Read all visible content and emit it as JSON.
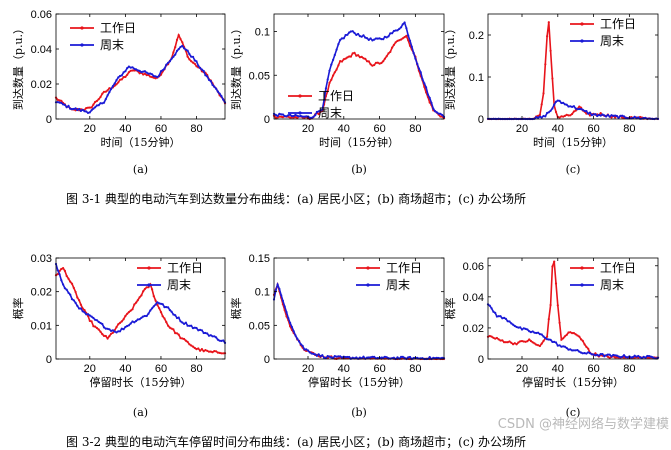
{
  "colors": {
    "weekday": "#e8141b",
    "weekend": "#1a1ad6",
    "axis": "#000000"
  },
  "legend": {
    "weekday": "工作日",
    "weekend": "周末"
  },
  "figures": {
    "fig1": {
      "caption": "图 3-1  典型的电动汽车到达数量分布曲线：(a) 居民小区；(b) 商场超市；(c) 办公场所",
      "xlabel": "时间（15分钟）",
      "ylabel": "到达数量（p.u.）"
    },
    "fig2": {
      "caption": "图 3-2  典型的电动汽车停留时间分布曲线：(a) 居民小区；(b) 商场超市；(c) 办公场所",
      "xlabel": "停留时长（15分钟）",
      "ylabel": "概率"
    }
  },
  "panel_labels": [
    "(a)",
    "(b)",
    "(c)"
  ],
  "watermark": "CSDN @神经网络与数学建模",
  "chart_data": [
    {
      "id": "p11",
      "type": "line",
      "panel": "(a)",
      "xlim": [
        1,
        96
      ],
      "ylim": [
        0,
        0.06
      ],
      "xticks": [
        20,
        40,
        60,
        80
      ],
      "yticks": [
        0,
        0.02,
        0.04,
        0.06
      ],
      "ytick_labels": [
        "0",
        "0.02",
        "0.04",
        "0.06"
      ],
      "xlabel": "时间（15分钟）",
      "ylabel": "到达数量（p.u.）",
      "legend_pos": "top-left",
      "series": [
        {
          "name": "工作日",
          "kp": [
            [
              1,
              0.012
            ],
            [
              10,
              0.005
            ],
            [
              20,
              0.006
            ],
            [
              28,
              0.015
            ],
            [
              35,
              0.02
            ],
            [
              44,
              0.028
            ],
            [
              50,
              0.026
            ],
            [
              58,
              0.023
            ],
            [
              66,
              0.035
            ],
            [
              70,
              0.048
            ],
            [
              76,
              0.034
            ],
            [
              86,
              0.025
            ],
            [
              96,
              0.009
            ]
          ]
        },
        {
          "name": "周末",
          "kp": [
            [
              1,
              0.01
            ],
            [
              10,
              0.006
            ],
            [
              20,
              0.004
            ],
            [
              28,
              0.01
            ],
            [
              35,
              0.022
            ],
            [
              42,
              0.03
            ],
            [
              50,
              0.027
            ],
            [
              58,
              0.024
            ],
            [
              66,
              0.035
            ],
            [
              72,
              0.042
            ],
            [
              78,
              0.035
            ],
            [
              86,
              0.024
            ],
            [
              96,
              0.01
            ]
          ]
        }
      ]
    },
    {
      "id": "p12",
      "type": "line",
      "panel": "(b)",
      "xlim": [
        1,
        96
      ],
      "ylim": [
        0,
        0.12
      ],
      "xticks": [
        20,
        40,
        60,
        80
      ],
      "yticks": [
        0,
        0.05,
        0.1
      ],
      "ytick_labels": [
        "0",
        "0.05",
        "0.1"
      ],
      "xlabel": "时间（15分钟）",
      "ylabel": "到达数量（p.u.）",
      "legend_pos": "center-left",
      "series": [
        {
          "name": "工作日",
          "kp": [
            [
              1,
              0.003
            ],
            [
              22,
              0.001
            ],
            [
              28,
              0.01
            ],
            [
              32,
              0.04
            ],
            [
              38,
              0.065
            ],
            [
              46,
              0.075
            ],
            [
              50,
              0.07
            ],
            [
              56,
              0.062
            ],
            [
              62,
              0.065
            ],
            [
              70,
              0.09
            ],
            [
              75,
              0.095
            ],
            [
              80,
              0.07
            ],
            [
              86,
              0.03
            ],
            [
              90,
              0.01
            ],
            [
              96,
              0.001
            ]
          ]
        },
        {
          "name": "周末",
          "kp": [
            [
              1,
              0.005
            ],
            [
              22,
              0.002
            ],
            [
              28,
              0.012
            ],
            [
              32,
              0.055
            ],
            [
              38,
              0.09
            ],
            [
              44,
              0.1
            ],
            [
              50,
              0.095
            ],
            [
              56,
              0.09
            ],
            [
              62,
              0.092
            ],
            [
              70,
              0.102
            ],
            [
              74,
              0.11
            ],
            [
              80,
              0.07
            ],
            [
              86,
              0.035
            ],
            [
              90,
              0.012
            ],
            [
              96,
              0.002
            ]
          ]
        }
      ]
    },
    {
      "id": "p13",
      "type": "line",
      "panel": "(c)",
      "xlim": [
        1,
        96
      ],
      "ylim": [
        0,
        0.25
      ],
      "xticks": [
        20,
        40,
        60,
        80
      ],
      "yticks": [
        0,
        0.1,
        0.2
      ],
      "ytick_labels": [
        "0",
        "0.1",
        "0.2"
      ],
      "xlabel": "时间（15分钟）",
      "ylabel": "到达数量（p.u.）",
      "legend_pos": "top-right",
      "series": [
        {
          "name": "工作日",
          "kp": [
            [
              1,
              0
            ],
            [
              26,
              0
            ],
            [
              30,
              0.01
            ],
            [
              32,
              0.06
            ],
            [
              34,
              0.2
            ],
            [
              35,
              0.23
            ],
            [
              36,
              0.16
            ],
            [
              38,
              0.03
            ],
            [
              40,
              0.005
            ],
            [
              48,
              0.01
            ],
            [
              52,
              0.03
            ],
            [
              56,
              0.01
            ],
            [
              64,
              0.012
            ],
            [
              72,
              0.005
            ],
            [
              82,
              0.003
            ],
            [
              96,
              0
            ]
          ]
        },
        {
          "name": "周末",
          "kp": [
            [
              1,
              0
            ],
            [
              26,
              0
            ],
            [
              32,
              0.005
            ],
            [
              36,
              0.02
            ],
            [
              40,
              0.045
            ],
            [
              44,
              0.035
            ],
            [
              48,
              0.03
            ],
            [
              54,
              0.02
            ],
            [
              60,
              0.01
            ],
            [
              66,
              0.008
            ],
            [
              72,
              0.006
            ],
            [
              82,
              0.003
            ],
            [
              96,
              0
            ]
          ]
        }
      ]
    },
    {
      "id": "p21",
      "type": "line",
      "panel": "(a)",
      "xlim": [
        1,
        96
      ],
      "ylim": [
        0,
        0.03
      ],
      "xticks": [
        20,
        40,
        60,
        80
      ],
      "yticks": [
        0,
        0.01,
        0.02,
        0.03
      ],
      "ytick_labels": [
        "0",
        "0.01",
        "0.02",
        "0.03"
      ],
      "xlabel": "停留时长（15分钟）",
      "ylabel": "概率",
      "legend_pos": "top-right",
      "series": [
        {
          "name": "工作日",
          "kp": [
            [
              1,
              0.025
            ],
            [
              5,
              0.027
            ],
            [
              10,
              0.022
            ],
            [
              16,
              0.015
            ],
            [
              22,
              0.01
            ],
            [
              30,
              0.006
            ],
            [
              36,
              0.01
            ],
            [
              44,
              0.015
            ],
            [
              50,
              0.02
            ],
            [
              54,
              0.022
            ],
            [
              58,
              0.016
            ],
            [
              64,
              0.01
            ],
            [
              72,
              0.006
            ],
            [
              80,
              0.003
            ],
            [
              88,
              0.002
            ],
            [
              96,
              0.002
            ]
          ]
        },
        {
          "name": "周末",
          "kp": [
            [
              1,
              0.028
            ],
            [
              5,
              0.022
            ],
            [
              10,
              0.018
            ],
            [
              16,
              0.014
            ],
            [
              22,
              0.012
            ],
            [
              30,
              0.009
            ],
            [
              36,
              0.008
            ],
            [
              44,
              0.011
            ],
            [
              52,
              0.013
            ],
            [
              58,
              0.017
            ],
            [
              64,
              0.015
            ],
            [
              72,
              0.011
            ],
            [
              80,
              0.009
            ],
            [
              88,
              0.007
            ],
            [
              96,
              0.005
            ]
          ]
        }
      ]
    },
    {
      "id": "p22",
      "type": "line",
      "panel": "(b)",
      "xlim": [
        1,
        96
      ],
      "ylim": [
        0,
        0.15
      ],
      "xticks": [
        20,
        40,
        60,
        80
      ],
      "yticks": [
        0,
        0.05,
        0.1,
        0.15
      ],
      "ytick_labels": [
        "0",
        "0.05",
        "0.1",
        "0.15"
      ],
      "xlabel": "停留时长（15分钟）",
      "ylabel": "概率",
      "legend_pos": "top-right",
      "series": [
        {
          "name": "工作日",
          "kp": [
            [
              1,
              0.095
            ],
            [
              3,
              0.11
            ],
            [
              6,
              0.08
            ],
            [
              10,
              0.05
            ],
            [
              14,
              0.03
            ],
            [
              18,
              0.015
            ],
            [
              24,
              0.006
            ],
            [
              30,
              0.003
            ],
            [
              40,
              0.001
            ],
            [
              96,
              0
            ]
          ]
        },
        {
          "name": "周末",
          "kp": [
            [
              1,
              0.09
            ],
            [
              3,
              0.112
            ],
            [
              6,
              0.085
            ],
            [
              10,
              0.055
            ],
            [
              14,
              0.03
            ],
            [
              18,
              0.015
            ],
            [
              24,
              0.007
            ],
            [
              30,
              0.003
            ],
            [
              40,
              0.002
            ],
            [
              96,
              0.001
            ]
          ]
        }
      ]
    },
    {
      "id": "p23",
      "type": "line",
      "panel": "(c)",
      "xlim": [
        1,
        96
      ],
      "ylim": [
        0,
        0.065
      ],
      "xticks": [
        20,
        40,
        60,
        80
      ],
      "yticks": [
        0,
        0.02,
        0.04,
        0.06
      ],
      "ytick_labels": [
        "0",
        "0.02",
        "0.04",
        "0.06"
      ],
      "xlabel": "停留时长（15分钟）",
      "ylabel": "概率",
      "legend_pos": "top-right",
      "series": [
        {
          "name": "工作日",
          "kp": [
            [
              1,
              0.015
            ],
            [
              8,
              0.012
            ],
            [
              16,
              0.01
            ],
            [
              24,
              0.012
            ],
            [
              30,
              0.008
            ],
            [
              34,
              0.015
            ],
            [
              36,
              0.035
            ],
            [
              37,
              0.06
            ],
            [
              38,
              0.062
            ],
            [
              40,
              0.035
            ],
            [
              42,
              0.012
            ],
            [
              46,
              0.017
            ],
            [
              50,
              0.016
            ],
            [
              54,
              0.012
            ],
            [
              58,
              0.004
            ],
            [
              64,
              0.002
            ],
            [
              72,
              0.001
            ],
            [
              96,
              0.001
            ]
          ]
        },
        {
          "name": "周末",
          "kp": [
            [
              1,
              0.035
            ],
            [
              6,
              0.028
            ],
            [
              12,
              0.025
            ],
            [
              18,
              0.02
            ],
            [
              24,
              0.018
            ],
            [
              30,
              0.016
            ],
            [
              36,
              0.012
            ],
            [
              42,
              0.008
            ],
            [
              48,
              0.006
            ],
            [
              54,
              0.004
            ],
            [
              60,
              0.003
            ],
            [
              70,
              0.002
            ],
            [
              96,
              0.001
            ]
          ]
        }
      ]
    }
  ]
}
